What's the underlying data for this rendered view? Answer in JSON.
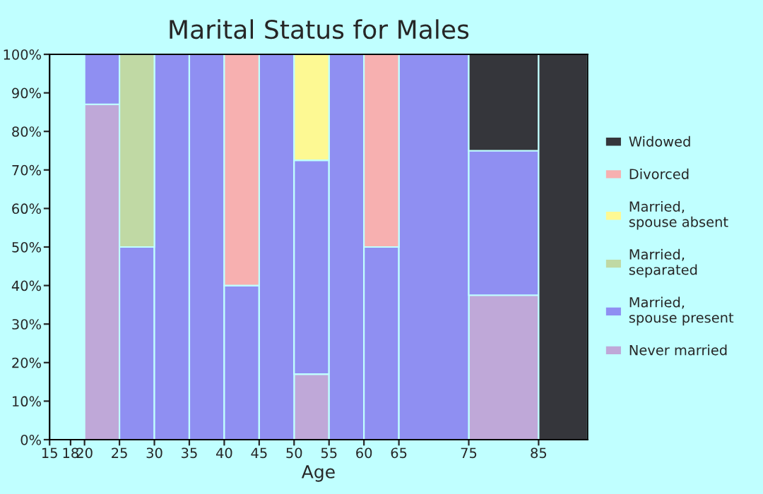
{
  "chart_data": {
    "type": "bar",
    "stacked": true,
    "title": "Marital Status for Males",
    "xlabel": "Age",
    "x": [
      22.5,
      27.5,
      32.5,
      37.5,
      42.5,
      47.5,
      52.5,
      57.5,
      62.5,
      70,
      80,
      88.5
    ],
    "xlim": [
      15,
      92
    ],
    "xticks": [
      15,
      18,
      20,
      25,
      30,
      35,
      40,
      45,
      50,
      55,
      60,
      65,
      75,
      85
    ],
    "ylim": [
      0,
      100
    ],
    "yticks": [
      {
        "value": 0,
        "label": "0%"
      },
      {
        "value": 10,
        "label": "10%"
      },
      {
        "value": 20,
        "label": "20%"
      },
      {
        "value": 30,
        "label": "30%"
      },
      {
        "value": 40,
        "label": "40%"
      },
      {
        "value": 50,
        "label": "50%"
      },
      {
        "value": 60,
        "label": "60%"
      },
      {
        "value": 70,
        "label": "70%"
      },
      {
        "value": 80,
        "label": "80%"
      },
      {
        "value": 90,
        "label": "90%"
      },
      {
        "value": 100,
        "label": "100%"
      }
    ],
    "legend": "right",
    "grid": false,
    "series": [
      {
        "name": "Never married",
        "color": "#bfa8d8",
        "values": [
          87,
          null,
          null,
          null,
          null,
          null,
          17,
          null,
          null,
          null,
          37.5,
          null
        ]
      },
      {
        "name": "Married,\nspouse present",
        "color": "#8f8ff2",
        "values": [
          13,
          50,
          100,
          100,
          40,
          100,
          55.5,
          100,
          50,
          100,
          37.5,
          null
        ]
      },
      {
        "name": "Married,\nseparated",
        "color": "#c0d9a4",
        "values": [
          null,
          50,
          null,
          null,
          null,
          null,
          null,
          null,
          null,
          null,
          null,
          null
        ]
      },
      {
        "name": "Married,\nspouse absent",
        "color": "#fdf993",
        "values": [
          null,
          null,
          null,
          null,
          null,
          null,
          27.5,
          null,
          null,
          null,
          null,
          null
        ]
      },
      {
        "name": "Divorced",
        "color": "#f7b0b0",
        "values": [
          null,
          null,
          null,
          null,
          60,
          null,
          null,
          null,
          50,
          null,
          null,
          null
        ]
      },
      {
        "name": "Widowed",
        "color": "#35363b",
        "values": [
          null,
          null,
          null,
          null,
          null,
          null,
          null,
          null,
          null,
          null,
          25,
          100
        ]
      }
    ]
  }
}
